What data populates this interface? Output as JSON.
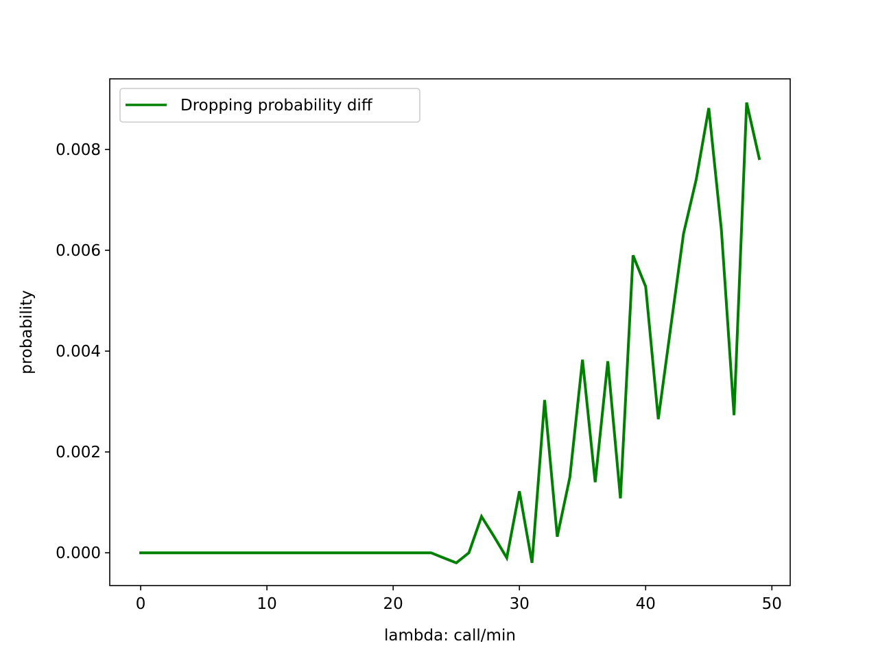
{
  "chart_data": {
    "type": "line",
    "title": "",
    "xlabel": "lambda: call/min",
    "ylabel": "probability",
    "xlim": [
      -2.45,
      51.45
    ],
    "ylim": [
      -0.00065,
      0.0094
    ],
    "xticks": [
      0,
      10,
      20,
      30,
      40,
      50
    ],
    "xtick_labels": [
      "0",
      "10",
      "20",
      "30",
      "40",
      "50"
    ],
    "yticks": [
      0.0,
      0.002,
      0.004,
      0.006,
      0.008
    ],
    "ytick_labels": [
      "0.000",
      "0.002",
      "0.004",
      "0.006",
      "0.008"
    ],
    "grid": false,
    "legend_position": "top-left",
    "series": [
      {
        "name": "Dropping probability diff",
        "color": "#008000",
        "x": [
          0,
          1,
          2,
          3,
          4,
          5,
          6,
          7,
          8,
          9,
          10,
          11,
          12,
          13,
          14,
          15,
          16,
          17,
          18,
          19,
          20,
          21,
          22,
          23,
          24,
          25,
          26,
          27,
          28,
          29,
          30,
          31,
          32,
          33,
          34,
          35,
          36,
          37,
          38,
          39,
          40,
          41,
          42,
          43,
          44,
          45,
          46,
          47,
          48,
          49
        ],
        "y": [
          0,
          0,
          0,
          0,
          0,
          0,
          0,
          0,
          0,
          0,
          0,
          0,
          0,
          0,
          0,
          0,
          0,
          0,
          0,
          0,
          0,
          0,
          0,
          0,
          -0.0001,
          -0.0002,
          0.0,
          0.00072,
          0.00032,
          -0.0001,
          0.00122,
          -0.0002,
          0.00303,
          0.00032,
          0.0015,
          0.00383,
          0.0014,
          0.0038,
          0.00108,
          0.0059,
          0.00528,
          0.00265,
          0.0045,
          0.00633,
          0.0074,
          0.00882,
          0.0064,
          0.00273,
          0.00893,
          0.00782
        ]
      }
    ]
  }
}
